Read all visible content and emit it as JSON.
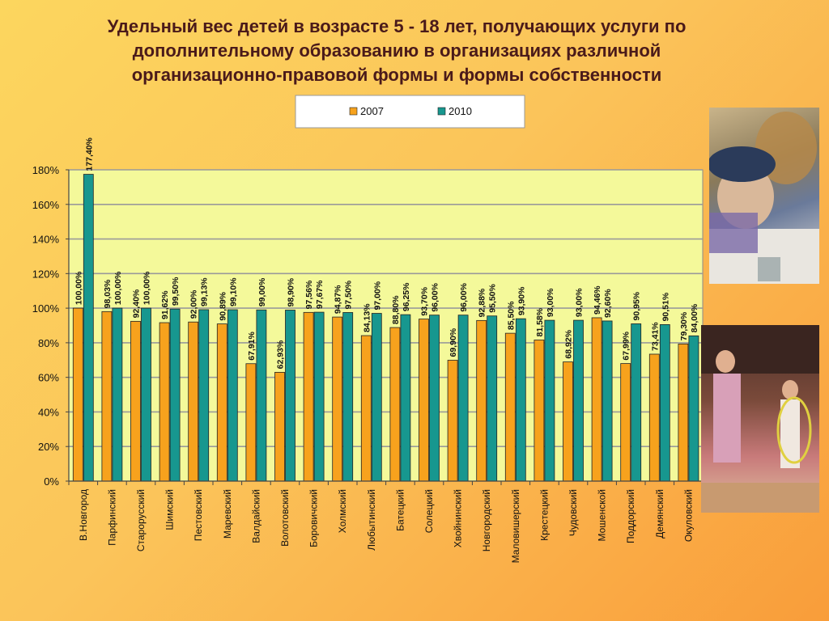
{
  "slide": {
    "title_lines": [
      "Удельный вес детей в возрасте 5 - 18 лет, получающих услуги по",
      "дополнительному образованию в организациях различной",
      "организационно-правовой формы и формы собственности"
    ]
  },
  "photos": [
    {
      "icon": "children-crafting-photo"
    },
    {
      "icon": "girls-performing-on-stage-photo"
    }
  ],
  "colors": {
    "series_2007": "#f7a21d",
    "series_2010": "#17978f",
    "plot_bg": "#f4f99a",
    "grid": "#9a9a9a"
  },
  "chart_data": {
    "type": "bar",
    "title": "",
    "xlabel": "",
    "ylabel": "",
    "ylim": [
      0,
      180
    ],
    "yticks": [
      0,
      20,
      40,
      60,
      80,
      100,
      120,
      140,
      160,
      180
    ],
    "ytick_labels": [
      "0%",
      "20%",
      "40%",
      "60%",
      "80%",
      "100%",
      "120%",
      "140%",
      "160%",
      "180%"
    ],
    "grid": true,
    "legend": "top",
    "categories": [
      "В.Новгород",
      "Парфинский",
      "Старорусский",
      "Шимский",
      "Пестовский",
      "Маревский",
      "Валдайский",
      "Волотовский",
      "Боровичский",
      "Холмский",
      "Любытинский",
      "Батецкий",
      "Солецкий",
      "Хвойнинский",
      "Новгородский",
      "Маловишерский",
      "Крестецкий",
      "Чудовский",
      "Мошенской",
      "Поддорский",
      "Демянский",
      "Окуловский"
    ],
    "series": [
      {
        "name": "2007",
        "values": [
          100.0,
          98.03,
          92.4,
          91.62,
          92.0,
          90.89,
          67.91,
          62.93,
          97.56,
          94.87,
          84.13,
          88.8,
          93.7,
          69.9,
          92.88,
          85.5,
          81.58,
          68.92,
          94.46,
          67.99,
          73.41,
          79.3
        ],
        "labels": [
          "100,00%",
          "98,03%",
          "92,40%",
          "91,62%",
          "92,00%",
          "90,89%",
          "67,91%",
          "62,93%",
          "97,56%",
          "94,87%",
          "84,13%",
          "88,80%",
          "93,70%",
          "69,90%",
          "92,88%",
          "85,50%",
          "81,58%",
          "68,92%",
          "94,46%",
          "67,99%",
          "73,41%",
          "79,30%"
        ]
      },
      {
        "name": "2010",
        "values": [
          177.4,
          100.0,
          100.0,
          99.5,
          99.13,
          99.1,
          99.0,
          98.9,
          97.67,
          97.5,
          97.0,
          96.25,
          96.0,
          96.0,
          95.5,
          93.9,
          93.0,
          93.0,
          92.6,
          90.95,
          90.51,
          84.0
        ],
        "labels": [
          "177,40%",
          "100,00%",
          "100,00%",
          "99,50%",
          "99,13%",
          "99,10%",
          "99,00%",
          "98,90%",
          "97,67%",
          "97,50%",
          "97,00%",
          "96,25%",
          "96,00%",
          "96,00%",
          "95,50%",
          "93,90%",
          "93,00%",
          "93,00%",
          "92,60%",
          "90,95%",
          "90,51%",
          "84,00%"
        ]
      }
    ]
  }
}
